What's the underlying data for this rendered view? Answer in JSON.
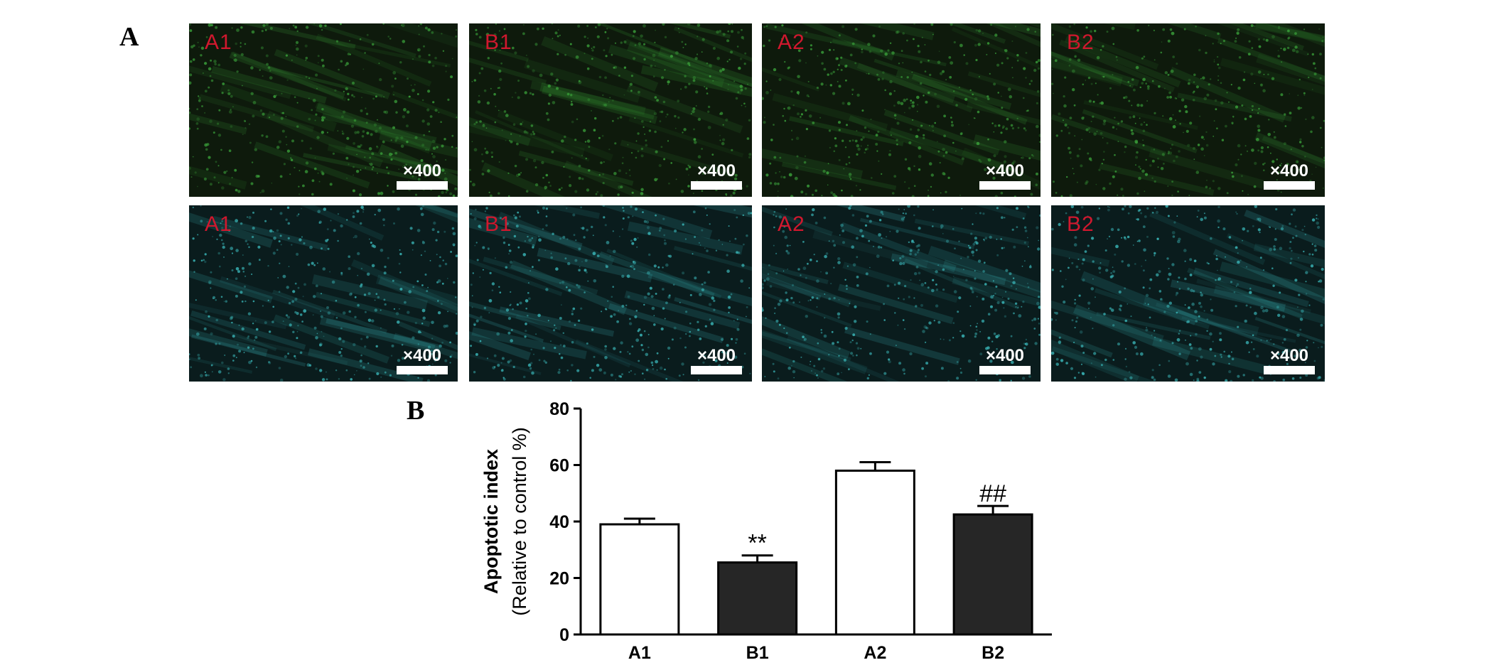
{
  "panel_labels": {
    "a": "A",
    "b": "B"
  },
  "micrographs": {
    "magnification": "×400",
    "columns": [
      "A1",
      "B1",
      "A2",
      "B2"
    ],
    "rows": [
      {
        "stain": "green",
        "tint": "#3aa03a",
        "bg": "#0e1a0c"
      },
      {
        "stain": "cyan",
        "tint": "#3ab6b8",
        "bg": "#0a1c1d"
      }
    ],
    "label_color": "#d0182e"
  },
  "chart_data": {
    "type": "bar",
    "categories": [
      "A1",
      "B1",
      "A2",
      "B2"
    ],
    "values": [
      39,
      25.5,
      58,
      42.5
    ],
    "errors": [
      2,
      2.5,
      3,
      3
    ],
    "fills": [
      "#ffffff",
      "#262626",
      "#ffffff",
      "#262626"
    ],
    "annotations": [
      "",
      "**",
      "",
      "##"
    ],
    "ylabel": "Apoptotic index",
    "ylabel2": "(Relative to control %)",
    "xlabel": "",
    "ylim": [
      0,
      80
    ],
    "yticks": [
      0,
      20,
      40,
      60,
      80
    ],
    "grid": false
  }
}
